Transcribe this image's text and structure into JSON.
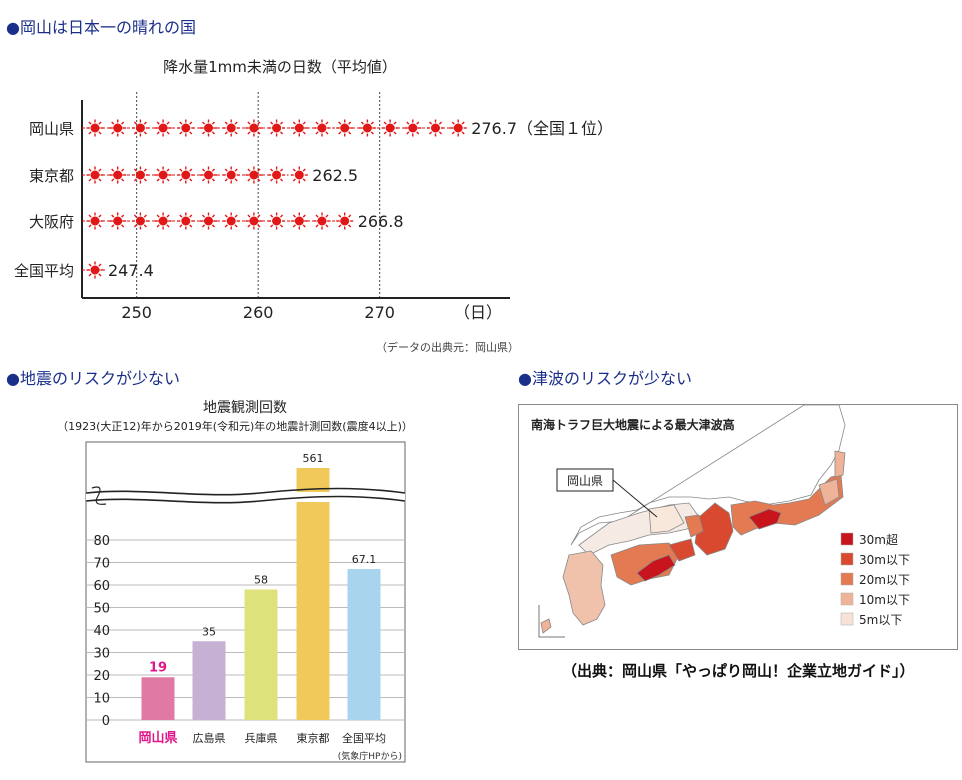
{
  "sections": {
    "sunny": "●岡山は日本一の晴れの国",
    "quake": "●地震のリスクが少ない",
    "tsunami": "●津波のリスクが少ない"
  },
  "chart_data": [
    {
      "type": "bar",
      "title": "降水量1mm未満の日数（平均値）",
      "unit_label": "（日）",
      "categories": [
        "岡山県",
        "東京都",
        "大阪府",
        "全国平均"
      ],
      "values": [
        276.7,
        262.5,
        266.8,
        247.4
      ],
      "value_labels": [
        "276.7（全国１位）",
        "262.5",
        "266.8",
        "247.4"
      ],
      "xticks": [
        250,
        260,
        270
      ],
      "xlim": [
        245.5,
        280
      ],
      "grid": "dotted-vertical",
      "source": "（データの出典元：岡山県）"
    },
    {
      "type": "bar",
      "title": "地震観測回数",
      "subtitle": "（1923(大正12)年から2019年(令和元)年の地震計測回数(震度4以上)）",
      "categories": [
        "岡山県",
        "広島県",
        "兵庫県",
        "東京都",
        "全国平均"
      ],
      "values": [
        19,
        35,
        58,
        561,
        67.1
      ],
      "value_labels": [
        "19",
        "35",
        "58",
        "561",
        "67.1"
      ],
      "yticks": [
        0,
        10,
        20,
        30,
        40,
        50,
        60,
        70,
        80
      ],
      "ylim": [
        0,
        80
      ],
      "axis_break": true,
      "colors": [
        "#e07aa4",
        "#c6b0d4",
        "#dde27b",
        "#f1c95a",
        "#a9d4ee"
      ],
      "highlight_color": "#e0178a",
      "source": "(気象庁HPから)"
    }
  ],
  "tsunami_map": {
    "title": "南海トラフ巨大地震による最大津波高",
    "callout": "岡山県",
    "legend": [
      {
        "label": "30m超",
        "color": "#c8141c"
      },
      {
        "label": "30m以下",
        "color": "#d9492f"
      },
      {
        "label": "20m以下",
        "color": "#e47a52"
      },
      {
        "label": "10m以下",
        "color": "#efb39a"
      },
      {
        "label": "5m以下",
        "color": "#f8e2d8"
      }
    ],
    "credit": "（出典：岡山県「やっぱり岡山！企業立地ガイド」）"
  }
}
